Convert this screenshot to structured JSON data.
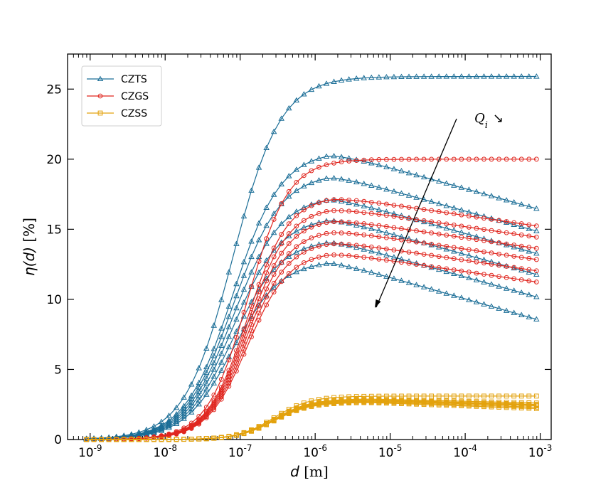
{
  "chart_data": {
    "type": "line",
    "xscale": "log",
    "xlim": [
      5e-10,
      0.0014
    ],
    "ylim": [
      0,
      27.5
    ],
    "xlabel_var": "d",
    "xlabel_unit": "[m]",
    "ylabel_var": "η(d)",
    "ylabel_unit": "[%]",
    "x_ticks": [
      {
        "exp": "-9",
        "value": 1e-09
      },
      {
        "exp": "-8",
        "value": 1e-08
      },
      {
        "exp": "-7",
        "value": 1e-07
      },
      {
        "exp": "-6",
        "value": 1e-06
      },
      {
        "exp": "-5",
        "value": 1e-05
      },
      {
        "exp": "-4",
        "value": 0.0001
      },
      {
        "exp": "-3",
        "value": 0.001
      }
    ],
    "y_ticks": [
      0,
      5,
      10,
      15,
      20,
      25
    ],
    "legend": [
      {
        "name": "CZTS",
        "color": "#1a6d96",
        "marker": "triangle"
      },
      {
        "name": "CZGS",
        "color": "#e0261f",
        "marker": "circle"
      },
      {
        "name": "CZSS",
        "color": "#e3a20d",
        "marker": "square"
      }
    ],
    "annotation": {
      "text": "Q",
      "subscript": "i",
      "arrow_symbol": "↘"
    },
    "series": [
      {
        "name": "CZTS",
        "peak": 25.9,
        "end": 25.9,
        "color": "#1a6d96",
        "marker": "triangle"
      },
      {
        "name": "CZTS",
        "peak": 20.6,
        "end": 16.4,
        "color": "#1a6d96",
        "marker": "triangle"
      },
      {
        "name": "CZTS",
        "peak": 19.0,
        "end": 14.8,
        "color": "#1a6d96",
        "marker": "triangle"
      },
      {
        "name": "CZTS",
        "peak": 17.4,
        "end": 13.2,
        "color": "#1a6d96",
        "marker": "triangle"
      },
      {
        "name": "CZTS",
        "peak": 15.9,
        "end": 11.7,
        "color": "#1a6d96",
        "marker": "triangle"
      },
      {
        "name": "CZTS",
        "peak": 14.3,
        "end": 10.1,
        "color": "#1a6d96",
        "marker": "triangle"
      },
      {
        "name": "CZTS",
        "peak": 12.8,
        "end": 8.5,
        "color": "#1a6d96",
        "marker": "triangle"
      },
      {
        "name": "CZGS",
        "peak": 20.0,
        "end": 20.0,
        "color": "#e0261f",
        "marker": "circle"
      },
      {
        "name": "CZGS",
        "peak": 17.4,
        "end": 15.2,
        "color": "#e0261f",
        "marker": "circle"
      },
      {
        "name": "CZGS",
        "peak": 16.6,
        "end": 14.4,
        "color": "#e0261f",
        "marker": "circle"
      },
      {
        "name": "CZGS",
        "peak": 15.8,
        "end": 13.6,
        "color": "#e0261f",
        "marker": "circle"
      },
      {
        "name": "CZGS",
        "peak": 15.0,
        "end": 12.8,
        "color": "#e0261f",
        "marker": "circle"
      },
      {
        "name": "CZGS",
        "peak": 14.2,
        "end": 12.0,
        "color": "#e0261f",
        "marker": "circle"
      },
      {
        "name": "CZGS",
        "peak": 13.4,
        "end": 11.2,
        "color": "#e0261f",
        "marker": "circle"
      },
      {
        "name": "CZSS",
        "peak": 3.1,
        "end": 3.1,
        "color": "#e3a20d",
        "marker": "square"
      },
      {
        "name": "CZSS",
        "peak": 2.9,
        "end": 2.6,
        "color": "#e3a20d",
        "marker": "square"
      },
      {
        "name": "CZSS",
        "peak": 2.85,
        "end": 2.5,
        "color": "#e3a20d",
        "marker": "square"
      },
      {
        "name": "CZSS",
        "peak": 2.8,
        "end": 2.45,
        "color": "#e3a20d",
        "marker": "square"
      },
      {
        "name": "CZSS",
        "peak": 2.75,
        "end": 2.4,
        "color": "#e3a20d",
        "marker": "square"
      },
      {
        "name": "CZSS",
        "peak": 2.7,
        "end": 2.3,
        "color": "#e3a20d",
        "marker": "square"
      },
      {
        "name": "CZSS",
        "peak": 2.65,
        "end": 2.2,
        "color": "#e3a20d",
        "marker": "square"
      }
    ]
  }
}
